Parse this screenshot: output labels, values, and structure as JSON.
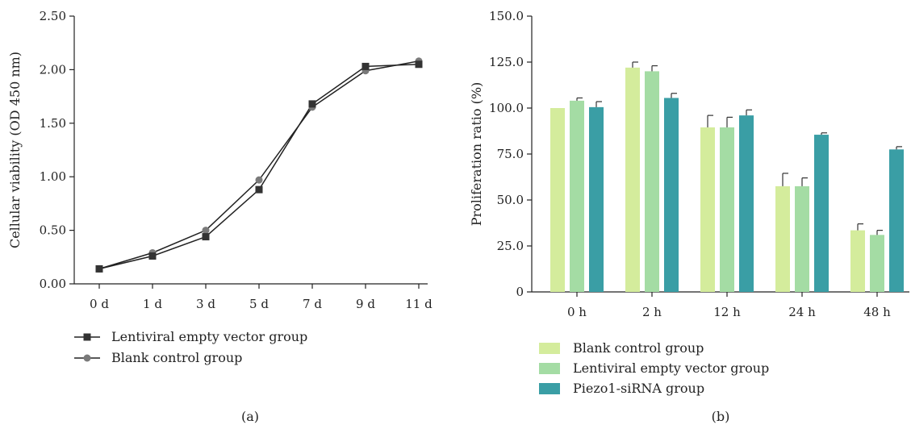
{
  "chart_data": [
    {
      "type": "line",
      "panel_label": "(a)",
      "ylabel": "Cellular viability (OD 450 nm)",
      "xlabel": "",
      "categories": [
        "0 d",
        "1 d",
        "3 d",
        "5 d",
        "7 d",
        "9 d",
        "11 d"
      ],
      "ylim": [
        0,
        2.5
      ],
      "yticks": [
        "0.00",
        "0.50",
        "1.00",
        "1.50",
        "2.00",
        "2.50"
      ],
      "ytick_values": [
        0,
        0.5,
        1.0,
        1.5,
        2.0,
        2.5
      ],
      "grid": false,
      "legend_position": "bottom-left",
      "series": [
        {
          "name": "Lentiviral empty vector group",
          "marker": "square",
          "color": "#333333",
          "values": [
            0.14,
            0.26,
            0.44,
            0.88,
            1.68,
            2.03,
            2.05
          ]
        },
        {
          "name": "Blank control group",
          "marker": "circle",
          "color": "#7a7a7a",
          "values": [
            0.14,
            0.29,
            0.5,
            0.97,
            1.65,
            1.99,
            2.08
          ]
        }
      ]
    },
    {
      "type": "bar",
      "panel_label": "(b)",
      "ylabel": "Proliferation ratio (%)",
      "xlabel": "",
      "categories": [
        "0 h",
        "2 h",
        "12 h",
        "24 h",
        "48 h"
      ],
      "ylim": [
        0,
        150
      ],
      "yticks": [
        "0",
        "25.0",
        "50.0",
        "75.0",
        "100.0",
        "125.0",
        "150.0"
      ],
      "ytick_values": [
        0,
        25,
        50,
        75,
        100,
        125,
        150
      ],
      "grid": false,
      "legend_position": "bottom-left",
      "series": [
        {
          "name": "Blank control group",
          "color": "#d4ec9c",
          "values": [
            100.0,
            122.0,
            89.5,
            57.5,
            33.5
          ],
          "errors": [
            0.0,
            3.0,
            6.5,
            7.0,
            3.5
          ]
        },
        {
          "name": "Lentiviral empty vector group",
          "color": "#a4dca4",
          "values": [
            104.0,
            120.0,
            89.5,
            57.5,
            31.0
          ],
          "errors": [
            1.5,
            3.0,
            5.5,
            4.5,
            2.5
          ]
        },
        {
          "name": "Piezo1-siRNA group",
          "color": "#3a9ea5",
          "values": [
            100.5,
            105.5,
            96.0,
            85.5,
            77.5
          ],
          "errors": [
            3.0,
            2.5,
            3.0,
            1.0,
            1.5
          ]
        }
      ]
    }
  ]
}
